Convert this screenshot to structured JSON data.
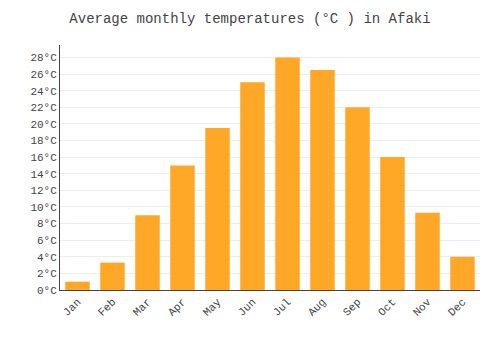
{
  "chart_data": {
    "type": "bar",
    "title": "Average monthly temperatures (°C ) in Afaki",
    "categories": [
      "Jan",
      "Feb",
      "Mar",
      "Apr",
      "May",
      "Jun",
      "Jul",
      "Aug",
      "Sep",
      "Oct",
      "Nov",
      "Dec"
    ],
    "values": [
      1.0,
      3.3,
      9.0,
      15.0,
      19.5,
      25.0,
      28.0,
      26.5,
      22.0,
      16.0,
      9.3,
      4.0
    ],
    "color": "#FFA726",
    "ylim": [
      0,
      29.5
    ],
    "yticks": [
      {
        "value": 0,
        "label": "0°C"
      },
      {
        "value": 2,
        "label": "2°C"
      },
      {
        "value": 4,
        "label": "4°C"
      },
      {
        "value": 6,
        "label": "6°C"
      },
      {
        "value": 8,
        "label": "8°C"
      },
      {
        "value": 10,
        "label": "10°C"
      },
      {
        "value": 12,
        "label": "12°C"
      },
      {
        "value": 14,
        "label": "14°C"
      },
      {
        "value": 16,
        "label": "16°C"
      },
      {
        "value": 18,
        "label": "18°C"
      },
      {
        "value": 20,
        "label": "20°C"
      },
      {
        "value": 22,
        "label": "22°C"
      },
      {
        "value": 24,
        "label": "24°C"
      },
      {
        "value": 26,
        "label": "26°C"
      },
      {
        "value": 28,
        "label": "28°C"
      }
    ],
    "grid": true
  }
}
